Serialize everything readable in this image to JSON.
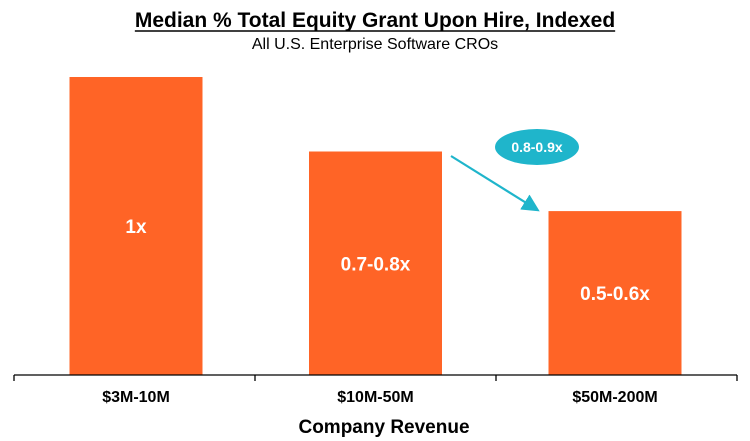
{
  "chart_data": {
    "type": "bar",
    "title": "Median % Total Equity Grant Upon Hire, Indexed",
    "subtitle": "All U.S. Enterprise Software CROs",
    "xlabel": "Company Revenue",
    "ylabel": "",
    "categories": [
      "$3M-10M",
      "$10M-50M",
      "$50M-200M"
    ],
    "values": [
      1,
      0.75,
      0.55
    ],
    "data_labels": [
      "1x",
      "0.7-0.8x",
      "0.5-0.6x"
    ],
    "ylim": [
      0,
      1
    ],
    "grid": false,
    "bar_color": "#FF6426",
    "annotation": {
      "text": "0.8-0.9x",
      "color": "#1FB5CB",
      "from_category": "$10M-50M",
      "to_category": "$50M-200M"
    }
  }
}
